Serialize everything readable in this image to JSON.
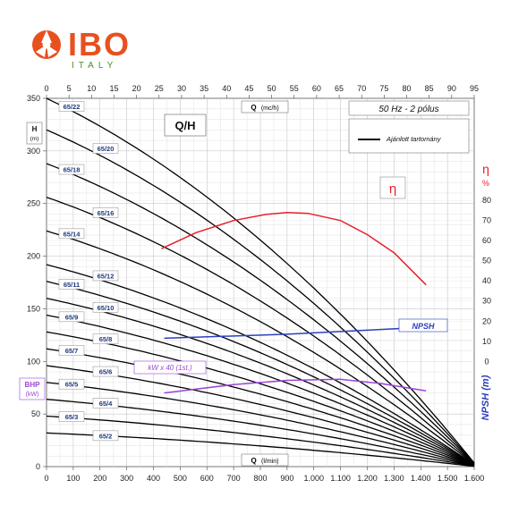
{
  "brand": {
    "logo_text": "IBO",
    "logo_sub": "ITALY",
    "logo_color": "#e8501e",
    "logo_sub_color": "#4a8c2a"
  },
  "chart_data": {
    "type": "line",
    "title": "Q/H",
    "frequency_label": "50 Hz - 2 pólus",
    "legend_entry": "Ajánlott tartomány",
    "legend_placement": "top-right",
    "grid": true,
    "x_top": {
      "label": "Q",
      "unit": "(mc/h)",
      "range": [
        0,
        95
      ],
      "ticks": [
        0,
        5,
        10,
        15,
        20,
        25,
        30,
        35,
        40,
        45,
        50,
        55,
        60,
        65,
        70,
        75,
        80,
        85,
        90,
        95
      ]
    },
    "x_bottom": {
      "label": "Q",
      "unit": "(l/min)",
      "range": [
        0,
        1600
      ],
      "ticks": [
        "0",
        "100",
        "200",
        "300",
        "400",
        "500",
        "600",
        "700",
        "800",
        "900",
        "1.000",
        "1.100",
        "1.200",
        "1.300",
        "1.400",
        "1.500",
        "1.600"
      ]
    },
    "y_left": {
      "label": "H",
      "unit": "(m)",
      "range": [
        0,
        350
      ],
      "ticks": [
        0,
        50,
        100,
        150,
        200,
        250,
        300,
        350
      ]
    },
    "y_left_secondary": {
      "label": "BHP",
      "unit": "(kW)"
    },
    "y_right": {
      "label": "η",
      "unit": "%",
      "range": [
        0,
        80
      ],
      "ticks": [
        0,
        10,
        20,
        30,
        40,
        50,
        60,
        70,
        80
      ]
    },
    "y_right_npsh": {
      "label": "NPSH (m)"
    },
    "annotations": {
      "eta_symbol": "η",
      "npsh_label": "NPSH",
      "kw_label": "kW x 40 (1st.)"
    },
    "colors": {
      "hq": "#000000",
      "efficiency": "#e8202a",
      "npsh": "#2b3fbf",
      "power": "#9b45d6",
      "label_text": "#1f3a7a"
    },
    "series": [
      {
        "name": "65/22",
        "shutoff": 350,
        "label_y": 342
      },
      {
        "name": "65/20",
        "shutoff": 320,
        "label_y": 302
      },
      {
        "name": "65/18",
        "shutoff": 288,
        "label_y": 282
      },
      {
        "name": "65/16",
        "shutoff": 256,
        "label_y": 241
      },
      {
        "name": "65/14",
        "shutoff": 224,
        "label_y": 221
      },
      {
        "name": "65/12",
        "shutoff": 192,
        "label_y": 181
      },
      {
        "name": "65/11",
        "shutoff": 176,
        "label_y": 173
      },
      {
        "name": "65/10",
        "shutoff": 160,
        "label_y": 151
      },
      {
        "name": "65/9",
        "shutoff": 144,
        "label_y": 142
      },
      {
        "name": "65/8",
        "shutoff": 128,
        "label_y": 121
      },
      {
        "name": "65/7",
        "shutoff": 112,
        "label_y": 110
      },
      {
        "name": "65/6",
        "shutoff": 96,
        "label_y": 90
      },
      {
        "name": "65/5",
        "shutoff": 80,
        "label_y": 78
      },
      {
        "name": "65/4",
        "shutoff": 64,
        "label_y": 60
      },
      {
        "name": "65/3",
        "shutoff": 48,
        "label_y": 47
      },
      {
        "name": "65/2",
        "shutoff": 32,
        "label_y": 29
      }
    ],
    "efficiency_curve": {
      "q_lpm": [
        430,
        560,
        700,
        820,
        900,
        980,
        1100,
        1200,
        1300,
        1420
      ],
      "eta_pct": [
        56,
        64,
        70,
        73,
        74,
        73.5,
        70,
        63,
        54,
        38
      ]
    },
    "npsh_curve": {
      "q_lpm": [
        440,
        900,
        1420
      ],
      "value": [
        11.5,
        13.5,
        17
      ]
    },
    "power_curve": {
      "q_lpm": [
        440,
        700,
        900,
        1100,
        1250,
        1420
      ],
      "value": [
        70,
        78,
        82,
        83,
        79,
        72
      ]
    }
  }
}
